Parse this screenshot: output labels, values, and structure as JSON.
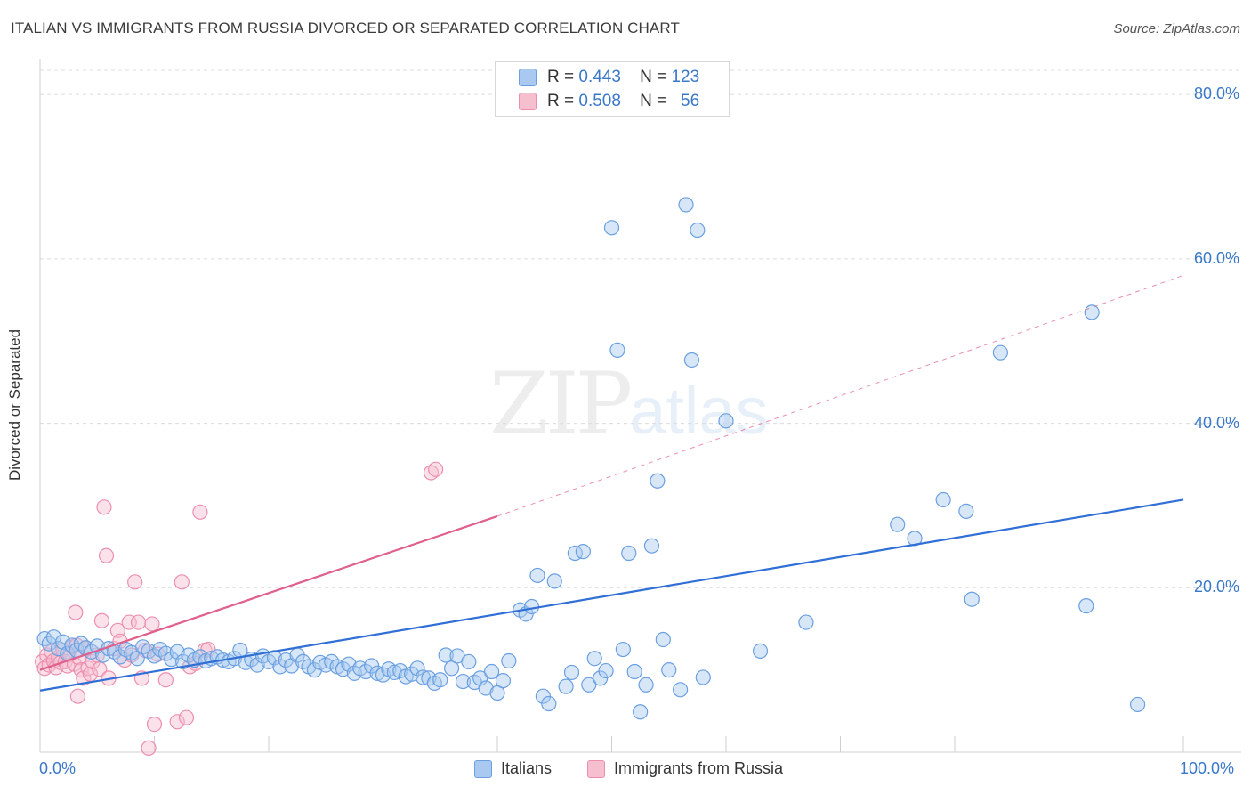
{
  "title": "ITALIAN VS IMMIGRANTS FROM RUSSIA DIVORCED OR SEPARATED CORRELATION CHART",
  "source": "Source: ZipAtlas.com",
  "watermark": {
    "zip": "ZIP",
    "atlas": "atlas"
  },
  "stats_legend": {
    "rows": [
      {
        "r_label": "R =",
        "r_value": "0.443",
        "n_label": "N =",
        "n_value": "123"
      },
      {
        "r_label": "R =",
        "r_value": "0.508",
        "n_label": "N =",
        "n_value": "56"
      }
    ]
  },
  "bottom_legend": [
    "Italians",
    "Immigrants from Russia"
  ],
  "colors": {
    "italians_fill": "#a9c9f0",
    "italians_stroke": "#6a9fe0",
    "italians_line": "#2f6fd6",
    "russia_fill": "#f6bfd0",
    "russia_stroke": "#ec8fae",
    "russia_line": "#e0608d",
    "tick_text": "#3a78c9",
    "grid": "#dcdcdc"
  },
  "chart_data": {
    "type": "scatter",
    "title": "ITALIAN VS IMMIGRANTS FROM RUSSIA DIVORCED OR SEPARATED CORRELATION CHART",
    "xlabel": "",
    "ylabel": "Divorced or Separated",
    "xlim": [
      0,
      100
    ],
    "ylim": [
      0,
      85
    ],
    "x_tick_labels": [
      "0.0%",
      "100.0%"
    ],
    "y_ticks": [
      20,
      40,
      60,
      80
    ],
    "y_tick_labels": [
      "20.0%",
      "40.0%",
      "60.0%",
      "80.0%"
    ],
    "grid": true,
    "legend_position": "top-center",
    "series": [
      {
        "name": "Italians",
        "r": 0.443,
        "n": 123,
        "trend": {
          "x0": 0,
          "y0": 7.5,
          "x1": 100,
          "y1": 30.7,
          "style": "solid"
        },
        "points": [
          [
            0.4,
            13.8
          ],
          [
            0.8,
            13.2
          ],
          [
            1.2,
            14.0
          ],
          [
            1.6,
            12.6
          ],
          [
            2.0,
            13.4
          ],
          [
            2.4,
            12.0
          ],
          [
            2.8,
            13.0
          ],
          [
            3.2,
            12.4
          ],
          [
            3.6,
            13.2
          ],
          [
            4.0,
            12.7
          ],
          [
            4.5,
            12.2
          ],
          [
            5.0,
            12.9
          ],
          [
            5.5,
            11.8
          ],
          [
            6.0,
            12.6
          ],
          [
            6.5,
            12.2
          ],
          [
            7.0,
            11.6
          ],
          [
            7.5,
            12.5
          ],
          [
            8.0,
            12.1
          ],
          [
            8.5,
            11.4
          ],
          [
            9.0,
            12.8
          ],
          [
            9.5,
            12.3
          ],
          [
            10.0,
            11.7
          ],
          [
            10.5,
            12.5
          ],
          [
            11.0,
            12.0
          ],
          [
            11.5,
            11.3
          ],
          [
            12.0,
            12.2
          ],
          [
            12.5,
            11.0
          ],
          [
            13.0,
            11.8
          ],
          [
            13.5,
            11.2
          ],
          [
            14.0,
            11.6
          ],
          [
            14.5,
            11.1
          ],
          [
            15.0,
            11.4
          ],
          [
            15.5,
            11.6
          ],
          [
            16.0,
            11.2
          ],
          [
            16.5,
            11.0
          ],
          [
            17.0,
            11.4
          ],
          [
            17.5,
            12.4
          ],
          [
            18.0,
            10.9
          ],
          [
            18.5,
            11.3
          ],
          [
            19.0,
            10.6
          ],
          [
            19.5,
            11.7
          ],
          [
            20.0,
            11.0
          ],
          [
            20.5,
            11.5
          ],
          [
            21.0,
            10.4
          ],
          [
            21.5,
            11.2
          ],
          [
            22.0,
            10.5
          ],
          [
            22.5,
            11.8
          ],
          [
            23.0,
            11.0
          ],
          [
            23.5,
            10.4
          ],
          [
            24.0,
            10.0
          ],
          [
            24.5,
            10.9
          ],
          [
            25.0,
            10.6
          ],
          [
            25.5,
            11.0
          ],
          [
            26.0,
            10.4
          ],
          [
            26.5,
            10.1
          ],
          [
            27.0,
            10.7
          ],
          [
            27.5,
            9.6
          ],
          [
            28.0,
            10.2
          ],
          [
            28.5,
            9.8
          ],
          [
            29.0,
            10.5
          ],
          [
            29.5,
            9.6
          ],
          [
            30.0,
            9.4
          ],
          [
            30.5,
            10.1
          ],
          [
            31.0,
            9.7
          ],
          [
            31.5,
            9.9
          ],
          [
            32.0,
            9.2
          ],
          [
            32.5,
            9.5
          ],
          [
            33.0,
            10.2
          ],
          [
            33.5,
            9.1
          ],
          [
            34.0,
            9.0
          ],
          [
            34.5,
            8.4
          ],
          [
            35.0,
            8.8
          ],
          [
            35.5,
            11.8
          ],
          [
            36.0,
            10.2
          ],
          [
            36.5,
            11.7
          ],
          [
            37.0,
            8.6
          ],
          [
            37.5,
            11.0
          ],
          [
            38.0,
            8.5
          ],
          [
            38.5,
            9.0
          ],
          [
            39.0,
            7.8
          ],
          [
            39.5,
            9.8
          ],
          [
            40.0,
            7.2
          ],
          [
            40.5,
            8.7
          ],
          [
            41.0,
            11.1
          ],
          [
            42.0,
            17.3
          ],
          [
            42.5,
            16.8
          ],
          [
            43.0,
            17.7
          ],
          [
            43.5,
            21.5
          ],
          [
            44.0,
            6.8
          ],
          [
            44.5,
            5.9
          ],
          [
            45.0,
            20.8
          ],
          [
            46.0,
            8.0
          ],
          [
            46.5,
            9.7
          ],
          [
            46.8,
            24.2
          ],
          [
            47.5,
            24.4
          ],
          [
            48.0,
            8.2
          ],
          [
            48.5,
            11.4
          ],
          [
            49.0,
            9.0
          ],
          [
            49.5,
            9.9
          ],
          [
            50.0,
            63.8
          ],
          [
            50.5,
            48.9
          ],
          [
            51.0,
            12.5
          ],
          [
            51.5,
            24.2
          ],
          [
            52.0,
            9.8
          ],
          [
            52.5,
            4.9
          ],
          [
            53.0,
            8.2
          ],
          [
            53.5,
            25.1
          ],
          [
            54.0,
            33.0
          ],
          [
            54.5,
            13.7
          ],
          [
            55.0,
            10.0
          ],
          [
            56.0,
            7.6
          ],
          [
            56.5,
            66.6
          ],
          [
            57.0,
            47.7
          ],
          [
            57.5,
            63.5
          ],
          [
            58.0,
            9.1
          ],
          [
            60.0,
            40.3
          ],
          [
            63.0,
            12.3
          ],
          [
            67.0,
            15.8
          ],
          [
            75.0,
            27.7
          ],
          [
            76.5,
            26.0
          ],
          [
            79.0,
            30.7
          ],
          [
            81.0,
            29.3
          ],
          [
            81.5,
            18.6
          ],
          [
            84.0,
            48.6
          ],
          [
            91.5,
            17.8
          ],
          [
            92.0,
            53.5
          ],
          [
            96.0,
            5.8
          ]
        ]
      },
      {
        "name": "Immigrants from Russia",
        "r": 0.508,
        "n": 56,
        "trend": {
          "x0": 0,
          "y0": 10.0,
          "x1": 40,
          "y1": 28.7,
          "x_dash_end": 100,
          "y_dash_end": 58.0,
          "style": "solid-then-dashed"
        },
        "points": [
          [
            0.2,
            11.0
          ],
          [
            0.4,
            10.2
          ],
          [
            0.6,
            11.8
          ],
          [
            0.8,
            10.6
          ],
          [
            1.0,
            12.2
          ],
          [
            1.2,
            11.1
          ],
          [
            1.4,
            10.3
          ],
          [
            1.6,
            11.5
          ],
          [
            1.8,
            10.9
          ],
          [
            2.0,
            12.4
          ],
          [
            2.2,
            11.0
          ],
          [
            2.4,
            10.5
          ],
          [
            2.6,
            11.9
          ],
          [
            2.8,
            12.8
          ],
          [
            3.0,
            10.7
          ],
          [
            3.2,
            13.0
          ],
          [
            3.4,
            11.5
          ],
          [
            3.6,
            10.0
          ],
          [
            3.8,
            9.0
          ],
          [
            4.0,
            12.6
          ],
          [
            4.2,
            10.2
          ],
          [
            4.4,
            9.5
          ],
          [
            4.6,
            11.0
          ],
          [
            5.0,
            11.8
          ],
          [
            5.2,
            10.1
          ],
          [
            5.4,
            16.0
          ],
          [
            5.6,
            29.8
          ],
          [
            5.8,
            23.9
          ],
          [
            6.0,
            9.0
          ],
          [
            6.5,
            12.6
          ],
          [
            6.8,
            14.8
          ],
          [
            7.0,
            13.5
          ],
          [
            7.4,
            11.2
          ],
          [
            7.8,
            15.8
          ],
          [
            8.0,
            11.8
          ],
          [
            8.3,
            20.7
          ],
          [
            8.6,
            15.8
          ],
          [
            8.9,
            9.0
          ],
          [
            9.2,
            12.4
          ],
          [
            9.5,
            0.5
          ],
          [
            9.8,
            15.6
          ],
          [
            10.0,
            3.4
          ],
          [
            10.3,
            11.9
          ],
          [
            11.0,
            8.8
          ],
          [
            12.0,
            3.7
          ],
          [
            12.4,
            20.7
          ],
          [
            12.8,
            4.2
          ],
          [
            13.1,
            10.4
          ],
          [
            13.6,
            10.8
          ],
          [
            14.0,
            29.2
          ],
          [
            14.4,
            12.4
          ],
          [
            14.7,
            12.5
          ],
          [
            3.1,
            17.0
          ],
          [
            3.3,
            6.8
          ],
          [
            34.2,
            34.0
          ],
          [
            34.6,
            34.4
          ]
        ]
      }
    ]
  }
}
